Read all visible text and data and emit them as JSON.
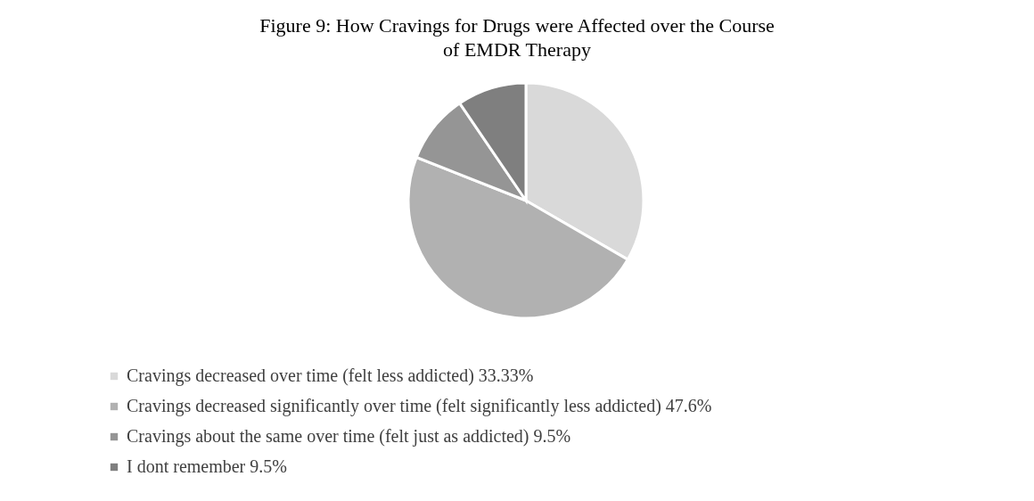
{
  "chart_data": {
    "type": "pie",
    "title": "Figure 9: How Cravings for Drugs were Affected over the Course of EMDR Therapy",
    "categories": [
      "Cravings decreased over time (felt less addicted)",
      "Cravings decreased significantly  over time (felt significantly less addicted)",
      "Cravings about the same over time (felt just as addicted)",
      "I dont remember"
    ],
    "values": [
      33.33,
      47.6,
      9.5,
      9.5
    ],
    "value_labels": [
      "33.33%",
      "47.6%",
      "9.5%",
      "9.5%"
    ],
    "colors": [
      "#d9d9d9",
      "#b1b1b1",
      "#959595",
      "#7f7f7f"
    ],
    "legend": "bottom left"
  }
}
